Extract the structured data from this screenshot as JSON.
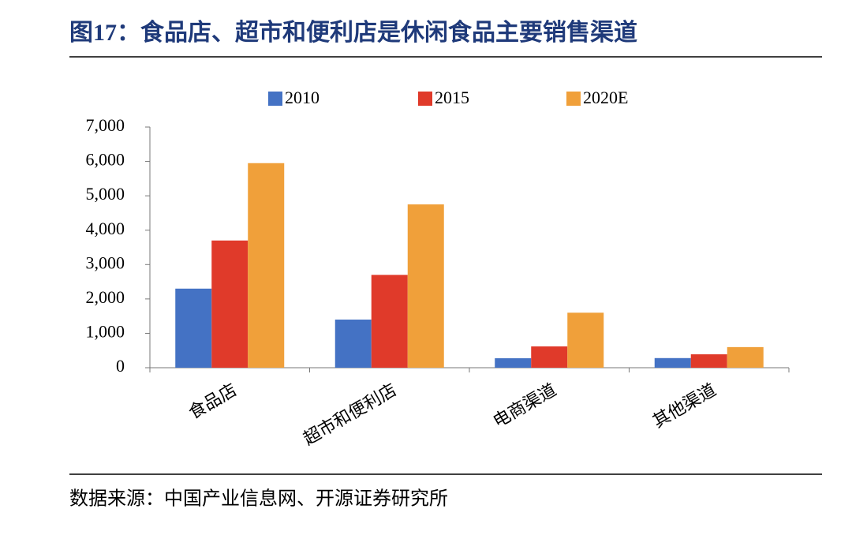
{
  "chart_data": {
    "type": "bar",
    "title": "图17：食品店、超市和便利店是休闲食品主要销售渠道",
    "source": "数据来源：中国产业信息网、开源证券研究所",
    "categories": [
      "食品店",
      "超市和便利店",
      "电商渠道",
      "其他渠道"
    ],
    "series": [
      {
        "name": "2010",
        "color": "#4472c4",
        "values": [
          2300,
          1400,
          275,
          280
        ]
      },
      {
        "name": "2015",
        "color": "#e03a2a",
        "values": [
          3700,
          2700,
          620,
          390
        ]
      },
      {
        "name": "2020E",
        "color": "#f0a03a",
        "values": [
          5950,
          4750,
          1600,
          600
        ]
      }
    ],
    "ylim": [
      0,
      7000
    ],
    "yticks": [
      0,
      {
        "value": 1000,
        "label": "1,000"
      },
      {
        "value": 2000,
        "label": "2,000"
      },
      {
        "value": 3000,
        "label": "3,000"
      },
      {
        "value": 4000,
        "label": "4,000"
      },
      {
        "value": 5000,
        "label": "5,000"
      },
      {
        "value": 6000,
        "label": "6,000"
      },
      {
        "value": 7000,
        "label": "7,000"
      }
    ],
    "grid": false,
    "legend": "top"
  }
}
